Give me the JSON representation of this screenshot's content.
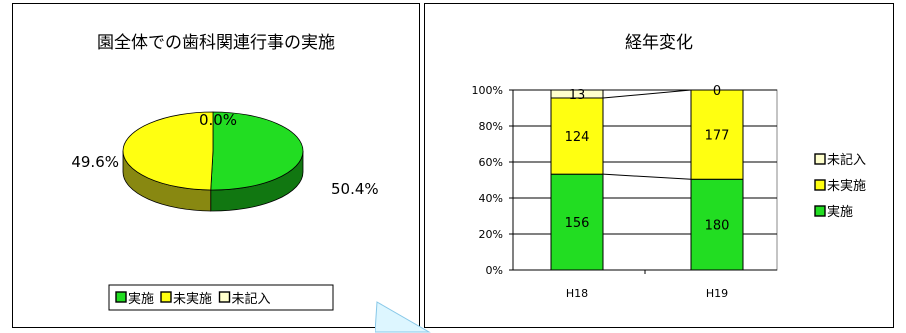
{
  "colors": {
    "implemented": "#22dd22",
    "implemented_side": "#117711",
    "not_implemented": "#ffff11",
    "not_implemented_side": "#888811",
    "not_filled": "#ffffcc",
    "callout": "#ddf6ff",
    "callout_border": "#88c8e8"
  },
  "chart_data": [
    {
      "type": "pie",
      "title": "園全体での歯科関連行事の実施",
      "slices": [
        {
          "name": "実施",
          "value": 50.4,
          "label": "50.4%",
          "color": "#22dd22"
        },
        {
          "name": "未実施",
          "value": 49.6,
          "label": "49.6%",
          "color": "#ffff11"
        },
        {
          "name": "未記入",
          "value": 0.0,
          "label": "0.0%",
          "color": "#ffffcc"
        }
      ],
      "legend": {
        "placement": "bottom",
        "items": [
          "実施",
          "未実施",
          "未記入"
        ]
      }
    },
    {
      "type": "bar",
      "stacked": "percent",
      "title": "経年変化",
      "categories": [
        "H18",
        "H19"
      ],
      "series": [
        {
          "name": "実施",
          "values": [
            156,
            180
          ],
          "color": "#22dd22"
        },
        {
          "name": "未実施",
          "values": [
            124,
            177
          ],
          "color": "#ffff11"
        },
        {
          "name": "未記入",
          "values": [
            13,
            0
          ],
          "color": "#ffffcc"
        }
      ],
      "y_ticks": [
        "0%",
        "20%",
        "40%",
        "60%",
        "80%",
        "100%"
      ],
      "ylim": [
        0,
        100
      ],
      "grid": true,
      "legend": {
        "placement": "right",
        "items": [
          "未記入",
          "未実施",
          "実施"
        ]
      }
    }
  ]
}
